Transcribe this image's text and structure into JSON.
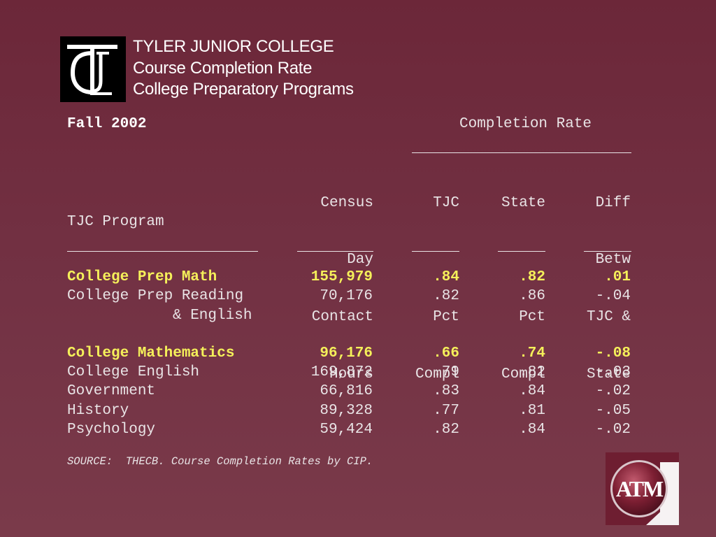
{
  "header": {
    "line1": "TYLER JUNIOR COLLEGE",
    "line2": "Course Completion Rate",
    "line3": "College Preparatory Programs"
  },
  "logos": {
    "left": "TJC",
    "right": "ATM"
  },
  "table": {
    "term": "Fall 2002",
    "group_label": "Completion Rate",
    "columns": {
      "program": "TJC Program",
      "hours": [
        "Census",
        "Day",
        "Contact",
        "Hours"
      ],
      "tjc": [
        "TJC",
        "",
        "Pct",
        "Compl"
      ],
      "state": [
        "State",
        "",
        "Pct",
        "Compl"
      ],
      "diff": [
        "Diff",
        "Betw",
        "TJC &",
        "State"
      ]
    },
    "rows": [
      {
        "program": "College Prep Math",
        "hours": "155,979",
        "tjc": ".84",
        "state": ".82",
        "diff": ".01"
      },
      {
        "program": "College Prep Reading",
        "program_cont": "& English",
        "hours": "70,176",
        "tjc": ".82",
        "state": ".86",
        "diff": "-.04"
      },
      {
        "program": "College Mathematics",
        "hours": "96,176",
        "tjc": ".66",
        "state": ".74",
        "diff": "-.08"
      },
      {
        "program": "College English",
        "hours": "169,872",
        "tjc": ".79",
        "state": ".82",
        "diff": "-.03"
      },
      {
        "program": "Government",
        "hours": "66,816",
        "tjc": ".83",
        "state": ".84",
        "diff": "-.02"
      },
      {
        "program": "History",
        "hours": "89,328",
        "tjc": ".77",
        "state": ".81",
        "diff": "-.05"
      },
      {
        "program": "Psychology",
        "hours": "59,424",
        "tjc": ".82",
        "state": ".84",
        "diff": "-.02"
      }
    ]
  },
  "source": "SOURCE:  THECB. Course Completion Rates by CIP.",
  "colors": {
    "background": "#6c2739",
    "highlight": "#f5f05a",
    "text": "#e9e4e6"
  }
}
